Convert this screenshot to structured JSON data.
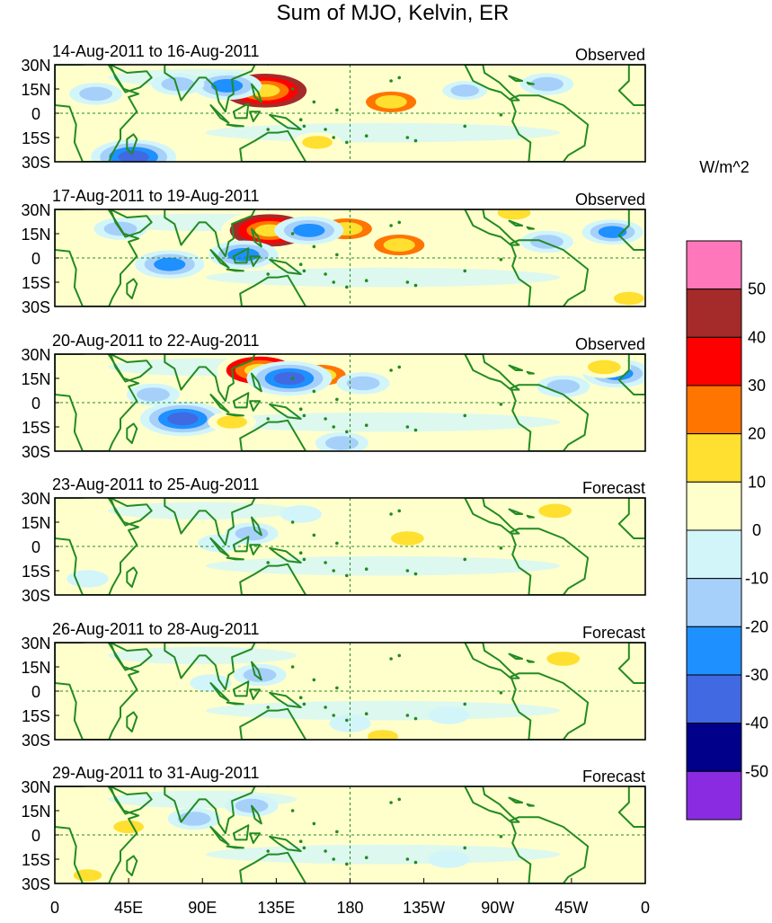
{
  "chart_data": {
    "type": "heatmap",
    "title": "Sum of MJO, Kelvin, ER",
    "lat_ticks": [
      "30N",
      "15N",
      "0",
      "15S",
      "30S"
    ],
    "lon_ticks": [
      "0",
      "45E",
      "90E",
      "135E",
      "180",
      "135W",
      "90W",
      "45W",
      "0"
    ],
    "colorbar": {
      "label": "W/m^2",
      "levels": [
        "50",
        "40",
        "30",
        "20",
        "10",
        "0",
        "-10",
        "-20",
        "-30",
        "-40",
        "-50"
      ],
      "colors": [
        "#ff77bb",
        "#a52a2a",
        "#ff0000",
        "#ff7500",
        "#ffdf30",
        "#ffffcc",
        "#d2f5fa",
        "#a6d0fa",
        "#1e90ff",
        "#4169e1",
        "#00008b",
        "#8a2be2"
      ]
    },
    "panels": [
      {
        "period": "14-Aug-2011 to 16-Aug-2011",
        "label": "Observed",
        "anomalies": [
          {
            "lon": 128,
            "lat": 14,
            "value": 45
          },
          {
            "lon": 205,
            "lat": 7,
            "value": 25
          },
          {
            "lon": 105,
            "lat": 17,
            "value": -25
          },
          {
            "lon": 75,
            "lat": 18,
            "value": -15
          },
          {
            "lon": 25,
            "lat": 12,
            "value": -15
          },
          {
            "lon": 48,
            "lat": -27,
            "value": -35
          },
          {
            "lon": 300,
            "lat": 18,
            "value": -15
          },
          {
            "lon": 250,
            "lat": 14,
            "value": -10
          },
          {
            "lon": 160,
            "lat": -18,
            "value": 12
          },
          {
            "lon": 62,
            "lat": -7,
            "value": 8
          }
        ]
      },
      {
        "period": "17-Aug-2011 to 19-Aug-2011",
        "label": "Observed",
        "anomalies": [
          {
            "lon": 131,
            "lat": 17,
            "value": 42
          },
          {
            "lon": 178,
            "lat": 18,
            "value": 25
          },
          {
            "lon": 210,
            "lat": 8,
            "value": 25
          },
          {
            "lon": 155,
            "lat": 17,
            "value": -25
          },
          {
            "lon": 115,
            "lat": 2,
            "value": -25
          },
          {
            "lon": 70,
            "lat": -4,
            "value": -25
          },
          {
            "lon": 40,
            "lat": 18,
            "value": -15
          },
          {
            "lon": 300,
            "lat": 10,
            "value": -15
          },
          {
            "lon": 340,
            "lat": 16,
            "value": -20
          },
          {
            "lon": 280,
            "lat": 28,
            "value": 15
          },
          {
            "lon": 350,
            "lat": -25,
            "value": 12
          }
        ]
      },
      {
        "period": "20-Aug-2011 to 22-Aug-2011",
        "label": "Observed",
        "anomalies": [
          {
            "lon": 125,
            "lat": 20,
            "value": 35
          },
          {
            "lon": 162,
            "lat": 17,
            "value": 25
          },
          {
            "lon": 143,
            "lat": 15,
            "value": -35
          },
          {
            "lon": 188,
            "lat": 12,
            "value": -15
          },
          {
            "lon": 78,
            "lat": -10,
            "value": -35
          },
          {
            "lon": 60,
            "lat": 5,
            "value": -15
          },
          {
            "lon": 310,
            "lat": 10,
            "value": -15
          },
          {
            "lon": 343,
            "lat": 18,
            "value": -25
          },
          {
            "lon": 335,
            "lat": 22,
            "value": 15
          },
          {
            "lon": 108,
            "lat": -12,
            "value": 12
          },
          {
            "lon": 175,
            "lat": -25,
            "value": -15
          }
        ]
      },
      {
        "period": "23-Aug-2011 to 25-Aug-2011",
        "label": "Forecast",
        "anomalies": [
          {
            "lon": 215,
            "lat": 5,
            "value": 15
          },
          {
            "lon": 305,
            "lat": 22,
            "value": 15
          },
          {
            "lon": 120,
            "lat": 8,
            "value": -15
          },
          {
            "lon": 100,
            "lat": 2,
            "value": -8
          },
          {
            "lon": 150,
            "lat": 20,
            "value": -8
          },
          {
            "lon": 20,
            "lat": -20,
            "value": -8
          }
        ]
      },
      {
        "period": "26-Aug-2011 to 28-Aug-2011",
        "label": "Forecast",
        "anomalies": [
          {
            "lon": 310,
            "lat": 20,
            "value": 15
          },
          {
            "lon": 125,
            "lat": 10,
            "value": -15
          },
          {
            "lon": 95,
            "lat": 5,
            "value": -8
          },
          {
            "lon": 180,
            "lat": -20,
            "value": -8
          },
          {
            "lon": 240,
            "lat": -15,
            "value": -8
          },
          {
            "lon": 200,
            "lat": -28,
            "value": 12
          }
        ]
      },
      {
        "period": "29-Aug-2011 to 31-Aug-2011",
        "label": "Forecast",
        "anomalies": [
          {
            "lon": 85,
            "lat": 10,
            "value": -15
          },
          {
            "lon": 120,
            "lat": 18,
            "value": -15
          },
          {
            "lon": 45,
            "lat": 5,
            "value": 12
          },
          {
            "lon": 240,
            "lat": -15,
            "value": -8
          },
          {
            "lon": 20,
            "lat": -25,
            "value": 10
          }
        ]
      }
    ]
  }
}
